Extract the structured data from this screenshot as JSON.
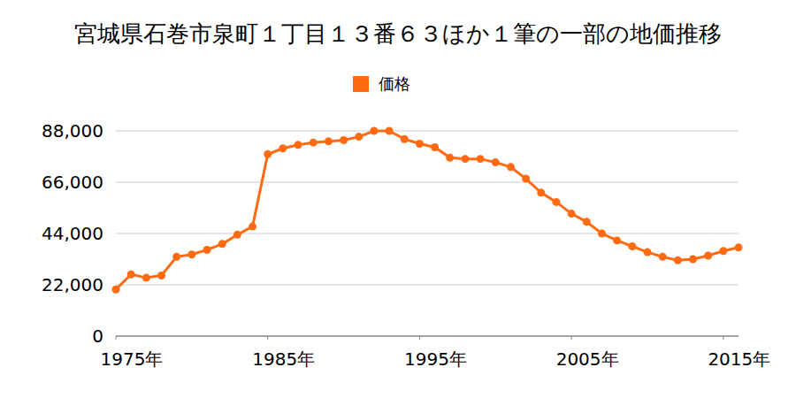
{
  "chart_data": {
    "type": "line",
    "title": "宮城県石巻市泉町１丁目１３番６３ほか１筆の一部の地価推移",
    "x": [
      1975,
      1976,
      1977,
      1978,
      1979,
      1980,
      1981,
      1982,
      1983,
      1984,
      1985,
      1986,
      1987,
      1988,
      1989,
      1990,
      1991,
      1992,
      1993,
      1994,
      1995,
      1996,
      1997,
      1998,
      1999,
      2000,
      2001,
      2002,
      2003,
      2004,
      2005,
      2006,
      2007,
      2008,
      2009,
      2010,
      2011,
      2012,
      2013,
      2014,
      2015,
      2016
    ],
    "series": [
      {
        "name": "価格",
        "color": "#ff6a13",
        "marker": "circle",
        "line_style": "solid",
        "values": [
          20000,
          26500,
          25000,
          26000,
          34000,
          35000,
          37000,
          39500,
          43500,
          47000,
          78000,
          80500,
          82000,
          83000,
          83500,
          84000,
          85500,
          88000,
          88000,
          84500,
          82500,
          81000,
          76500,
          76000,
          76000,
          74500,
          72500,
          67500,
          61500,
          57500,
          52500,
          49000,
          44000,
          41000,
          38500,
          36000,
          34000,
          32500,
          33000,
          34500,
          36500,
          38000
        ]
      }
    ],
    "xlim": [
      1975,
      2016
    ],
    "xticks": [
      {
        "value": 1975,
        "label": "1975年"
      },
      {
        "value": 1985,
        "label": "1985年"
      },
      {
        "value": 1995,
        "label": "1995年"
      },
      {
        "value": 2005,
        "label": "2005年"
      },
      {
        "value": 2015,
        "label": "2015年"
      }
    ],
    "ylim": [
      0,
      88000
    ],
    "yticks": [
      0,
      {
        "value": 22000,
        "label": "22,000"
      },
      {
        "value": 44000,
        "label": "44,000"
      },
      {
        "value": 66000,
        "label": "66,000"
      },
      {
        "value": 88000,
        "label": "88,000"
      }
    ],
    "grid": true,
    "legend": "top"
  }
}
